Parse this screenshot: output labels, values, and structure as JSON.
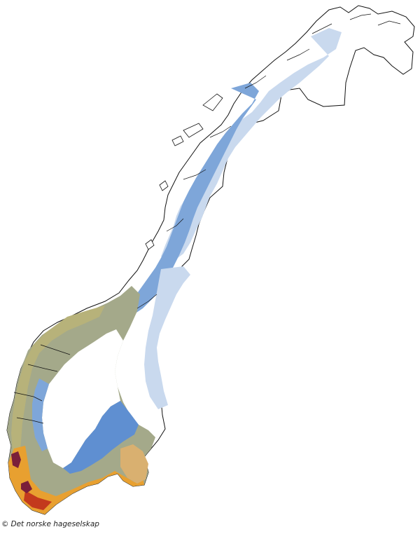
{
  "credit": {
    "symbol": "©",
    "text": "Det norske hageselskap"
  },
  "colors": {
    "outline": "#111111",
    "zone_white": "#ffffff",
    "zone_pale_blue": "#c9d9ee",
    "zone_blue": "#7ea6d9",
    "zone_mid_blue": "#5f8fd1",
    "zone_grey_green": "#a4a98a",
    "zone_olive": "#b7b27a",
    "zone_tan": "#d9b070",
    "zone_orange": "#e8a030",
    "zone_red": "#c33a1d",
    "zone_maroon": "#7a1f3a"
  }
}
